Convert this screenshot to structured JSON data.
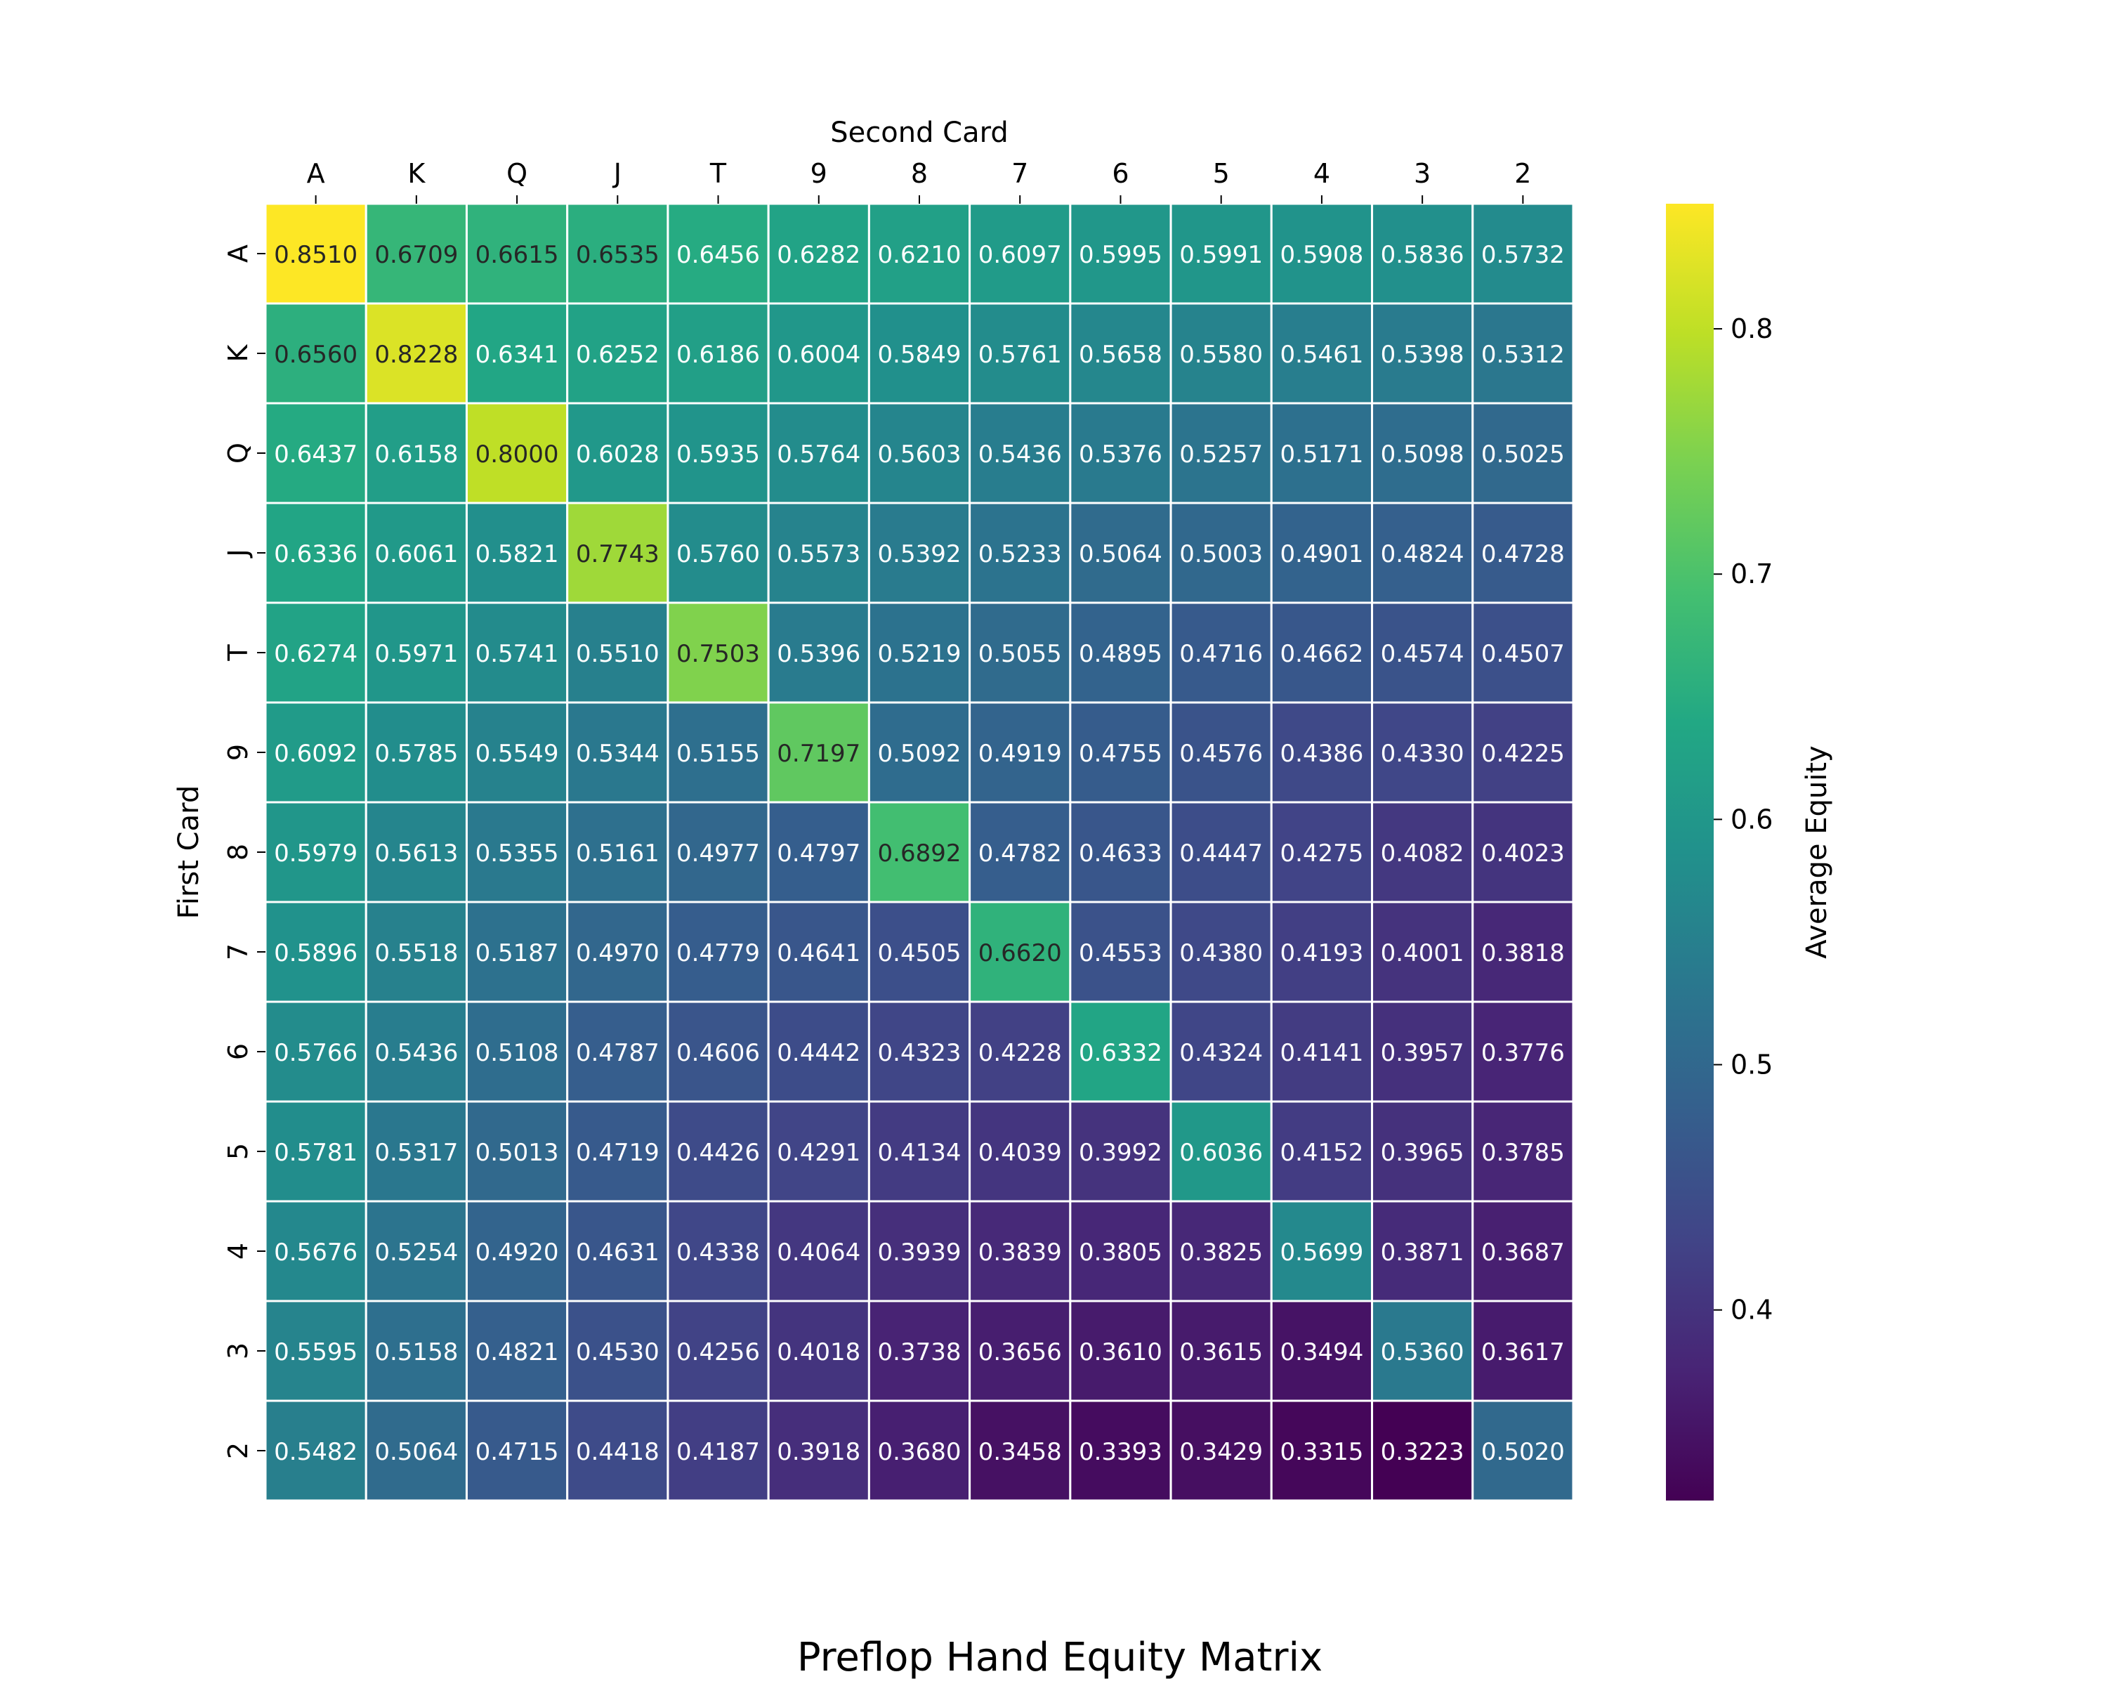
{
  "chart_data": {
    "type": "heatmap",
    "title": "Preflop Hand Equity Matrix",
    "xlabel": "Second Card",
    "ylabel": "First Card",
    "colorbar_label": "Average Equity",
    "colormap": "viridis",
    "colorbar_range": [
      0.3223,
      0.851
    ],
    "colorbar_ticks": [
      "0.4",
      "0.5",
      "0.6",
      "0.7",
      "0.8"
    ],
    "x_categories": [
      "A",
      "K",
      "Q",
      "J",
      "T",
      "9",
      "8",
      "7",
      "6",
      "5",
      "4",
      "3",
      "2"
    ],
    "y_categories": [
      "A",
      "K",
      "Q",
      "J",
      "T",
      "9",
      "8",
      "7",
      "6",
      "5",
      "4",
      "3",
      "2"
    ],
    "x_axis_position": "top",
    "values": [
      [
        "0.8510",
        "0.6709",
        "0.6615",
        "0.6535",
        "0.6456",
        "0.6282",
        "0.6210",
        "0.6097",
        "0.5995",
        "0.5991",
        "0.5908",
        "0.5836",
        "0.5732"
      ],
      [
        "0.6560",
        "0.8228",
        "0.6341",
        "0.6252",
        "0.6186",
        "0.6004",
        "0.5849",
        "0.5761",
        "0.5658",
        "0.5580",
        "0.5461",
        "0.5398",
        "0.5312"
      ],
      [
        "0.6437",
        "0.6158",
        "0.8000",
        "0.6028",
        "0.5935",
        "0.5764",
        "0.5603",
        "0.5436",
        "0.5376",
        "0.5257",
        "0.5171",
        "0.5098",
        "0.5025"
      ],
      [
        "0.6336",
        "0.6061",
        "0.5821",
        "0.7743",
        "0.5760",
        "0.5573",
        "0.5392",
        "0.5233",
        "0.5064",
        "0.5003",
        "0.4901",
        "0.4824",
        "0.4728"
      ],
      [
        "0.6274",
        "0.5971",
        "0.5741",
        "0.5510",
        "0.7503",
        "0.5396",
        "0.5219",
        "0.5055",
        "0.4895",
        "0.4716",
        "0.4662",
        "0.4574",
        "0.4507"
      ],
      [
        "0.6092",
        "0.5785",
        "0.5549",
        "0.5344",
        "0.5155",
        "0.7197",
        "0.5092",
        "0.4919",
        "0.4755",
        "0.4576",
        "0.4386",
        "0.4330",
        "0.4225"
      ],
      [
        "0.5979",
        "0.5613",
        "0.5355",
        "0.5161",
        "0.4977",
        "0.4797",
        "0.6892",
        "0.4782",
        "0.4633",
        "0.4447",
        "0.4275",
        "0.4082",
        "0.4023"
      ],
      [
        "0.5896",
        "0.5518",
        "0.5187",
        "0.4970",
        "0.4779",
        "0.4641",
        "0.4505",
        "0.6620",
        "0.4553",
        "0.4380",
        "0.4193",
        "0.4001",
        "0.3818"
      ],
      [
        "0.5766",
        "0.5436",
        "0.5108",
        "0.4787",
        "0.4606",
        "0.4442",
        "0.4323",
        "0.4228",
        "0.6332",
        "0.4324",
        "0.4141",
        "0.3957",
        "0.3776"
      ],
      [
        "0.5781",
        "0.5317",
        "0.5013",
        "0.4719",
        "0.4426",
        "0.4291",
        "0.4134",
        "0.4039",
        "0.3992",
        "0.6036",
        "0.4152",
        "0.3965",
        "0.3785"
      ],
      [
        "0.5676",
        "0.5254",
        "0.4920",
        "0.4631",
        "0.4338",
        "0.4064",
        "0.3939",
        "0.3839",
        "0.3805",
        "0.3825",
        "0.5699",
        "0.3871",
        "0.3687"
      ],
      [
        "0.5595",
        "0.5158",
        "0.4821",
        "0.4530",
        "0.4256",
        "0.4018",
        "0.3738",
        "0.3656",
        "0.3610",
        "0.3615",
        "0.3494",
        "0.5360",
        "0.3617"
      ],
      [
        "0.5482",
        "0.5064",
        "0.4715",
        "0.4418",
        "0.4187",
        "0.3918",
        "0.3680",
        "0.3458",
        "0.3393",
        "0.3429",
        "0.3315",
        "0.3223",
        "0.5020"
      ]
    ]
  }
}
